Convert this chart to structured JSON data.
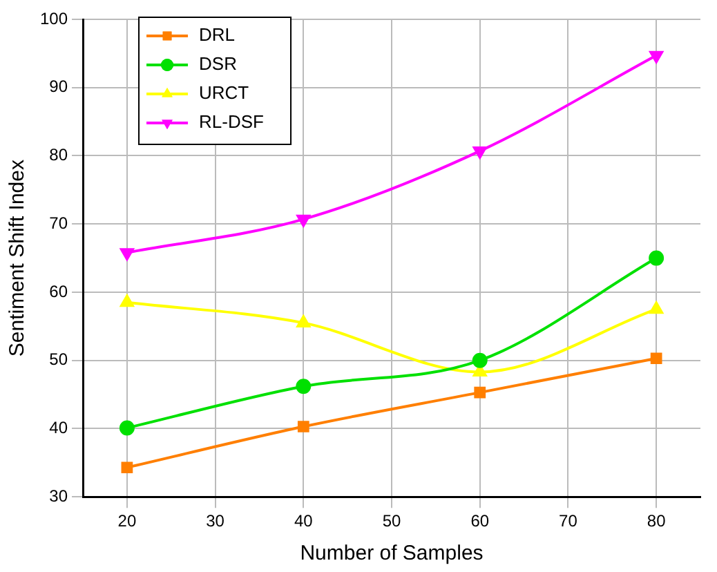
{
  "chart_data": {
    "type": "line",
    "xlabel": "Number of Samples",
    "ylabel": "Sentiment Shift Index",
    "x": [
      20,
      40,
      60,
      80
    ],
    "xlim": [
      15,
      85
    ],
    "xticks": [
      20,
      30,
      40,
      50,
      60,
      70,
      80
    ],
    "ylim": [
      30,
      100
    ],
    "yticks": [
      30,
      40,
      50,
      60,
      70,
      80,
      90,
      100
    ],
    "grid": true,
    "legend": "top left",
    "line_style": "solid",
    "series": [
      {
        "name": "DRL",
        "color": "#ff7f00",
        "marker": "square",
        "values": [
          34.3,
          40.3,
          45.3,
          50.3
        ]
      },
      {
        "name": "DSR",
        "color": "#00e000",
        "marker": "circle",
        "values": [
          40.1,
          46.2,
          50.0,
          65.0
        ]
      },
      {
        "name": "URCT",
        "color": "#ffff00",
        "marker": "triangle",
        "values": [
          58.5,
          55.5,
          48.3,
          57.5
        ]
      },
      {
        "name": "RL-DSF",
        "color": "#ff00ff",
        "marker": "triangle-down",
        "values": [
          65.8,
          70.7,
          80.7,
          94.7
        ]
      }
    ]
  }
}
